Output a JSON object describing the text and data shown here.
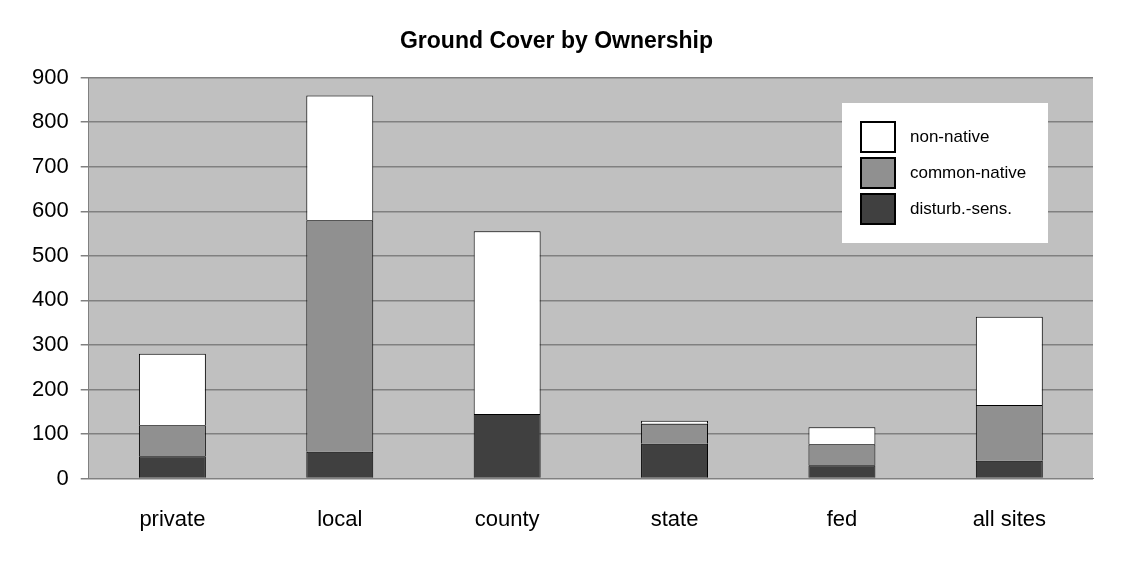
{
  "chart_data": {
    "type": "bar",
    "title": "Ground Cover by Ownership",
    "categories": [
      "private",
      "local",
      "county",
      "state",
      "fed",
      "all sites"
    ],
    "stacked": true,
    "series": [
      {
        "name": "disturb.-sens.",
        "color": "#404040",
        "values": [
          50,
          60,
          145,
          78,
          30,
          40
        ]
      },
      {
        "name": "common-native",
        "color": "#909090",
        "values": [
          70,
          520,
          0,
          45,
          47,
          125
        ]
      },
      {
        "name": "non-native",
        "color": "#ffffff",
        "values": [
          160,
          280,
          410,
          7,
          38,
          198
        ]
      }
    ],
    "ylim": [
      0,
      900
    ],
    "yticks": [
      0,
      100,
      200,
      300,
      400,
      500,
      600,
      700,
      800,
      900
    ],
    "grid": "y",
    "legend": "top right"
  }
}
